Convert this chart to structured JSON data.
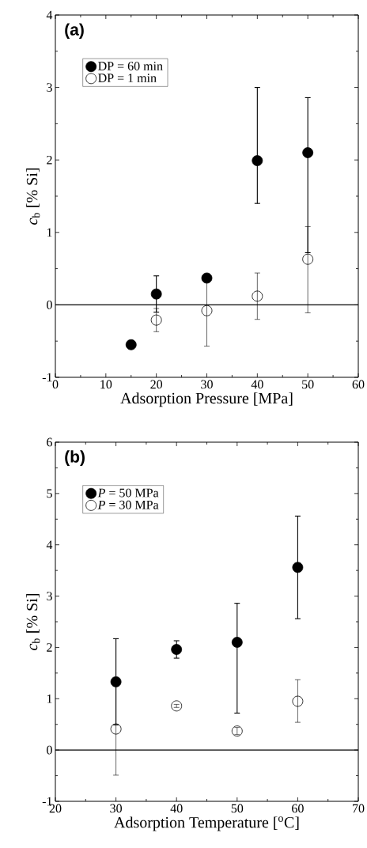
{
  "chart_data": [
    {
      "type": "scatter",
      "title": "(a)",
      "xlabel": "Adsorption Pressure [MPa]",
      "ylabel": "*c*$_{b}$ [% Si]",
      "xlim": [
        0,
        60
      ],
      "xticks": [
        0,
        10,
        20,
        30,
        40,
        50,
        60
      ],
      "ylim": [
        -1,
        4
      ],
      "yticks": [
        -1,
        0,
        1,
        2,
        3,
        4
      ],
      "marker": "circle",
      "legend": "top left",
      "grid": false,
      "ref_lines": [
        {
          "axis": "y",
          "value": 0
        }
      ],
      "series": [
        {
          "name": "DP = 60 min",
          "color": "#000000",
          "x": [
            15,
            20,
            30,
            40,
            50
          ],
          "values": [
            -0.55,
            0.15,
            0.37,
            1.99,
            2.1
          ],
          "errors": [
            null,
            0.25,
            0.05,
            [
              1.4,
              3.0
            ],
            [
              0.72,
              2.86
            ]
          ]
        },
        {
          "name": "DP = 1 min",
          "color": "#000000",
          "x": [
            20,
            30,
            40,
            50
          ],
          "values": [
            -0.21,
            -0.08,
            0.12,
            0.63
          ],
          "errors": [
            0.16,
            0.49,
            0.32,
            [
              -0.11,
              1.08
            ]
          ]
        }
      ]
    },
    {
      "type": "scatter",
      "title": "(b)",
      "xlabel": "Adsorption Temperature [$^{o}$C]",
      "ylabel": "*c*$_{b}$ [% Si]",
      "xlim": [
        20,
        70
      ],
      "xticks": [
        20,
        30,
        40,
        50,
        60,
        70
      ],
      "ylim": [
        -1,
        6
      ],
      "yticks": [
        -1,
        0,
        1,
        2,
        3,
        4,
        5,
        6
      ],
      "marker": "circle",
      "legend": "top left",
      "grid": false,
      "ref_lines": [
        {
          "axis": "y",
          "value": 0
        }
      ],
      "series": [
        {
          "name": "*P* = 50 MPa",
          "color": "#000000",
          "x": [
            30,
            40,
            50,
            60
          ],
          "values": [
            1.33,
            1.96,
            2.1,
            3.56
          ],
          "errors": [
            0.84,
            0.17,
            [
              0.72,
              2.86
            ],
            1.0
          ]
        },
        {
          "name": "*P* = 30 MPa",
          "color": "#000000",
          "x": [
            30,
            40,
            50,
            60
          ],
          "values": [
            0.41,
            0.86,
            0.37,
            0.95
          ],
          "errors": [
            0.9,
            0.03,
            0.07,
            [
              0.54,
              1.37
            ]
          ]
        }
      ]
    }
  ]
}
